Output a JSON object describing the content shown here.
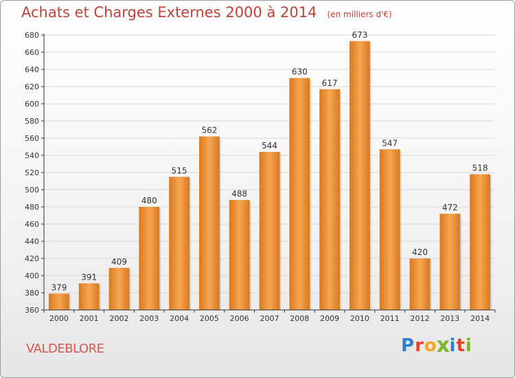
{
  "title": "Achats et Charges Externes 2000 à 2014",
  "subtitle": "(en milliers d'€)",
  "place": "VALDEBLORE",
  "logo": {
    "text": "Proxiti",
    "letters": [
      {
        "ch": "P",
        "color": "#2a7fd0"
      },
      {
        "ch": "r",
        "color": "#e8432a"
      },
      {
        "ch": "o",
        "color": "#f2a623"
      },
      {
        "ch": "x",
        "color": "#7ab829"
      },
      {
        "ch": "i",
        "color": "#2a7fd0"
      },
      {
        "ch": "t",
        "color": "#e8432a"
      },
      {
        "ch": "i",
        "color": "#7ab829"
      }
    ]
  },
  "colors": {
    "bar_light": "#f6a651",
    "bar_dark": "#d9781f",
    "axis": "#333333",
    "grid": "#d7d7d7",
    "title": "#c0403a"
  },
  "chart_data": {
    "type": "bar",
    "categories": [
      "2000",
      "2001",
      "2002",
      "2003",
      "2004",
      "2005",
      "2006",
      "2007",
      "2008",
      "2009",
      "2010",
      "2011",
      "2012",
      "2013",
      "2014"
    ],
    "values": [
      379,
      391,
      409,
      480,
      515,
      562,
      488,
      544,
      630,
      617,
      673,
      547,
      420,
      472,
      518
    ],
    "title": "Achats et Charges Externes 2000 à 2014",
    "subtitle": "(en milliers d'€)",
    "xlabel": "",
    "ylabel": "",
    "ylim": [
      360,
      680
    ],
    "yticks": [
      360,
      380,
      400,
      420,
      440,
      460,
      480,
      500,
      520,
      540,
      560,
      580,
      600,
      620,
      640,
      660,
      680
    ],
    "grid": true,
    "data_labels": true
  }
}
